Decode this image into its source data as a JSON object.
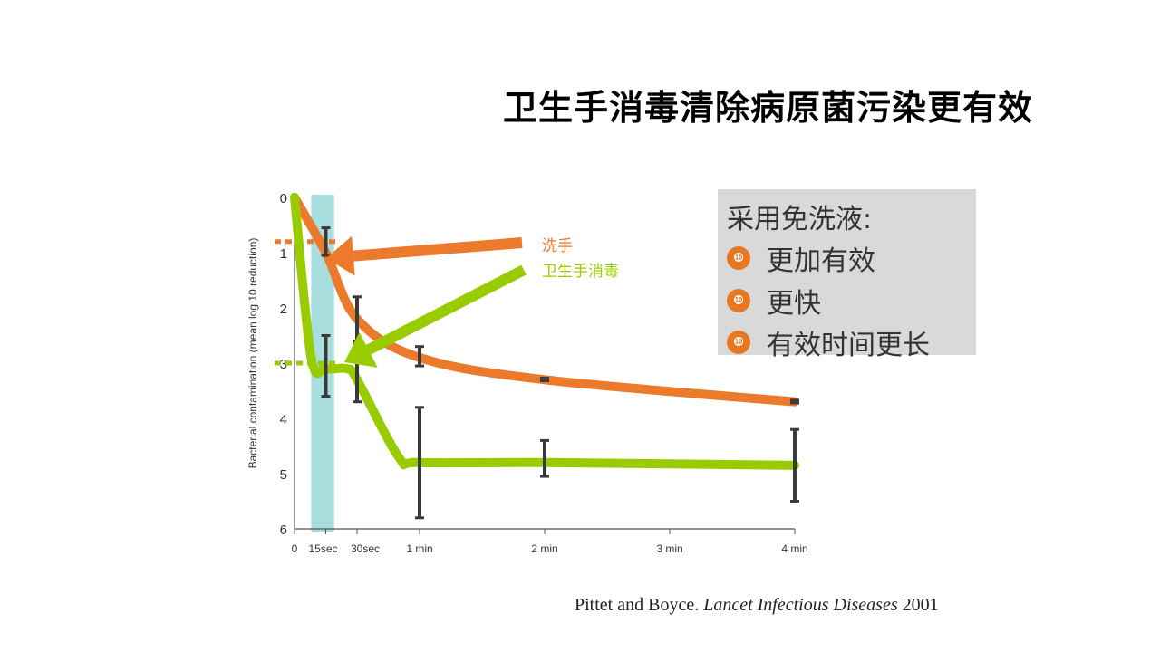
{
  "slide": {
    "title": "卫生手消毒清除病原菌污染更有效",
    "citation_authors": "Pittet and Boyce. ",
    "citation_journal": "Lancet Infectious Diseases",
    "citation_year": " 2001"
  },
  "summary_box": {
    "title": "采用免洗液:",
    "bullet_glyph": "❿",
    "items": [
      "更加有效",
      "更快",
      "有效时间更长"
    ]
  },
  "colors": {
    "handwash": "#ec7a2c",
    "handrub": "#99cc00",
    "highlight": "#a9dede",
    "errorbar": "#3a3a3a",
    "box_bg": "#d9d9d9",
    "bullet": "#e87722"
  },
  "chart_data": {
    "type": "line",
    "ylabel": "Bacterial contamination (mean log 10 reduction)",
    "ylim": [
      0,
      6
    ],
    "y_reversed": true,
    "y_ticks": [
      "0",
      "1",
      "2",
      "3",
      "4",
      "5",
      "6"
    ],
    "x_ticks": [
      {
        "value": 0,
        "label": "0"
      },
      {
        "value": 15,
        "label": "15sec"
      },
      {
        "value": 30,
        "label": "30sec"
      },
      {
        "value": 60,
        "label": "1 min"
      },
      {
        "value": 120,
        "label": "2 min"
      },
      {
        "value": 180,
        "label": "3 min"
      },
      {
        "value": 240,
        "label": "4 min"
      }
    ],
    "highlight_range_sec": [
      8,
      19
    ],
    "series": [
      {
        "name": "洗手",
        "color_key": "handwash",
        "reference_level": 0.8,
        "points": [
          [
            0,
            0
          ],
          [
            15,
            1.0
          ],
          [
            30,
            2.2
          ],
          [
            60,
            2.9
          ],
          [
            120,
            3.3
          ],
          [
            240,
            3.7
          ]
        ],
        "error_bars": [
          [
            15,
            0.55,
            1.05
          ],
          [
            30,
            1.8,
            2.65
          ],
          [
            60,
            2.7,
            3.05
          ],
          [
            120,
            3.27,
            3.32
          ],
          [
            240,
            3.67,
            3.72
          ]
        ]
      },
      {
        "name": "卫生手消毒",
        "color_key": "handrub",
        "reference_level": 3.0,
        "points": [
          [
            0,
            0
          ],
          [
            8,
            2.9
          ],
          [
            15,
            3.1
          ],
          [
            25,
            3.1
          ],
          [
            30,
            3.3
          ],
          [
            50,
            4.7
          ],
          [
            60,
            4.8
          ],
          [
            120,
            4.8
          ],
          [
            240,
            4.85
          ]
        ],
        "error_bars": [
          [
            15,
            2.5,
            3.6
          ],
          [
            30,
            2.6,
            3.7
          ],
          [
            60,
            3.8,
            5.8
          ],
          [
            120,
            4.4,
            5.05
          ],
          [
            240,
            4.2,
            5.5
          ]
        ]
      }
    ]
  }
}
